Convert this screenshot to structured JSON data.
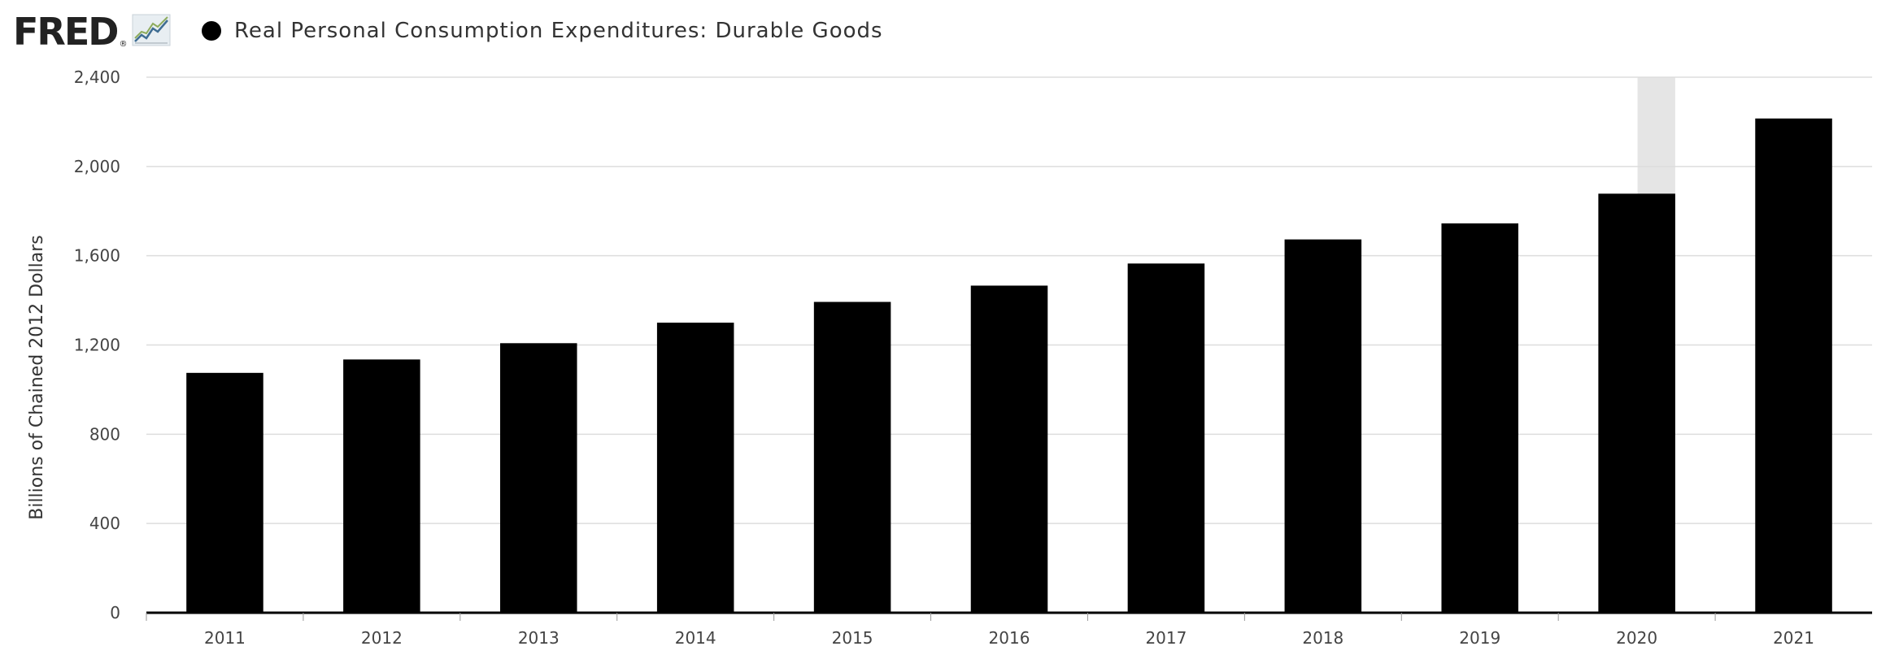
{
  "header": {
    "logo_text": "FRED",
    "logo_reg": "®",
    "logo_icon": "line-chart-icon"
  },
  "chart_data": {
    "type": "bar",
    "title": "Real Personal Consumption Expenditures: Durable Goods",
    "ylabel": "Billions of Chained 2012 Dollars",
    "xlabel": "",
    "categories": [
      "2011",
      "2012",
      "2013",
      "2014",
      "2015",
      "2016",
      "2017",
      "2018",
      "2019",
      "2020",
      "2021"
    ],
    "series": [
      {
        "name": "Real Personal Consumption Expenditures: Durable Goods",
        "values": [
          1075,
          1135,
          1208,
          1300,
          1393,
          1466,
          1565,
          1673,
          1745,
          1878,
          2215
        ],
        "color": "#000000"
      }
    ],
    "ylim": [
      0,
      2400
    ],
    "yticks": [
      0,
      400,
      800,
      1200,
      1600,
      2000,
      2400
    ],
    "ytick_labels": [
      "0",
      "400",
      "800",
      "1,200",
      "1,600",
      "2,000",
      "2,400"
    ],
    "recession_shading": {
      "category": "2020",
      "color": "#e5e5e5"
    },
    "grid": true,
    "gridline_color": "#dddddd",
    "axis_color": "#000000",
    "legend": "top-left"
  }
}
